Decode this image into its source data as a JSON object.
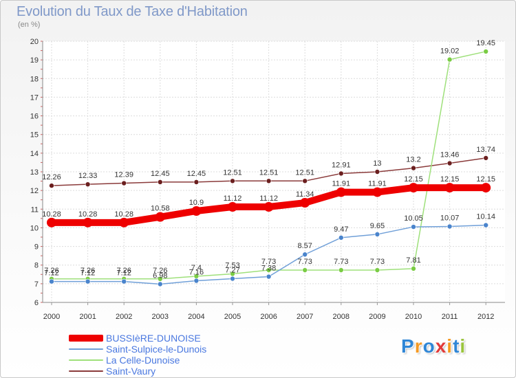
{
  "chart_data": {
    "type": "line",
    "title": "Evolution du Taux de Taxe d'Habitation",
    "subtitle": "(en %)",
    "x": [
      "2000",
      "2001",
      "2002",
      "2003",
      "2004",
      "2005",
      "2006",
      "2007",
      "2008",
      "2009",
      "2010",
      "2011",
      "2012"
    ],
    "ylim": [
      6,
      20
    ],
    "yticks": [
      "6",
      "7",
      "8",
      "9",
      "10",
      "11",
      "12",
      "13",
      "14",
      "15",
      "16",
      "17",
      "18",
      "19",
      "20"
    ],
    "grid": true,
    "legend_position": "bottom-left",
    "series": [
      {
        "name": "BUSSIèRE-DUNOISE",
        "color": "#ee0000",
        "marker": "#ee0000",
        "values": [
          10.28,
          10.28,
          10.28,
          10.58,
          10.9,
          11.12,
          11.12,
          11.34,
          11.91,
          11.91,
          12.15,
          12.15,
          12.15
        ],
        "labels": [
          "10.28",
          "10.28",
          "10.28",
          "10.58",
          "10.9",
          "11.12",
          "11.12",
          "11.34",
          "11.91",
          "11.91",
          "12.15",
          "12.15",
          "12.15"
        ]
      },
      {
        "name": "Saint-Sulpice-le-Dunois",
        "color": "#6f9fd8",
        "marker": "#4a84cc",
        "values": [
          7.12,
          7.12,
          7.12,
          6.98,
          7.16,
          7.27,
          7.38,
          8.57,
          9.47,
          9.65,
          10.05,
          10.07,
          10.14
        ],
        "labels": [
          "7.12",
          "7.12",
          "7.12",
          "6.98",
          "7.16",
          "7.27",
          "7.38",
          "8.57",
          "9.47",
          "9.65",
          "10.05",
          "10.07",
          "10.14"
        ]
      },
      {
        "name": "La Celle-Dunoise",
        "color": "#9ee07a",
        "marker": "#7acc44",
        "values": [
          7.26,
          7.26,
          7.26,
          7.26,
          7.4,
          7.53,
          7.73,
          7.73,
          7.73,
          7.73,
          7.81,
          19.02,
          19.45
        ],
        "labels": [
          "7.26",
          "7.26",
          "7.26",
          "7.26",
          "7.4",
          "7.53",
          "7.73",
          "7.73",
          "7.73",
          "7.73",
          "7.81",
          "19.02",
          "19.45"
        ]
      },
      {
        "name": "Saint-Vaury",
        "color": "#8a3a3a",
        "marker": "#6b1f1f",
        "values": [
          12.26,
          12.33,
          12.39,
          12.45,
          12.45,
          12.51,
          12.51,
          12.51,
          12.91,
          13,
          13.2,
          13.46,
          13.74
        ],
        "labels": [
          "12.26",
          "12.33",
          "12.39",
          "12.45",
          "12.45",
          "12.51",
          "12.51",
          "12.51",
          "12.91",
          "13",
          "13.2",
          "13.46",
          "13.74"
        ]
      }
    ]
  },
  "logo": {
    "letters": [
      "P",
      "r",
      "o",
      "x",
      "i",
      "t",
      "i"
    ],
    "colors": [
      "#2f86d6",
      "#f59a23",
      "#2f86d6",
      "#e23a3a",
      "#f59a23",
      "#2f86d6",
      "#9ac43c"
    ]
  }
}
